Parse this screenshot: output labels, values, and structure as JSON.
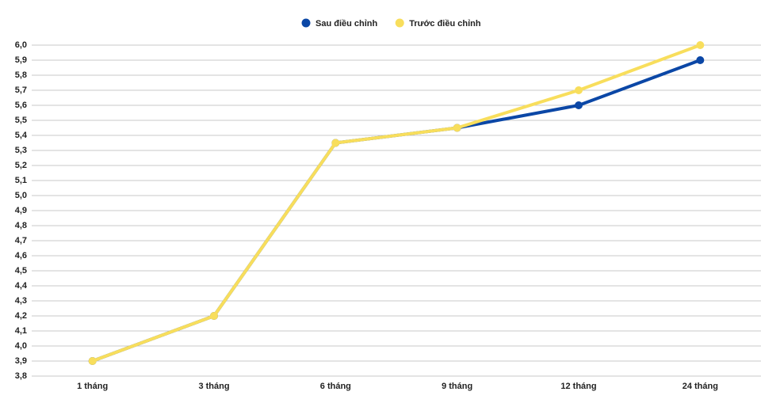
{
  "chart_data": {
    "type": "line",
    "categories": [
      "1 tháng",
      "3 tháng",
      "6 tháng",
      "9 tháng",
      "12 tháng",
      "24 tháng"
    ],
    "series": [
      {
        "name": "Sau điều chỉnh",
        "color": "#0b47a6",
        "values": [
          3.9,
          4.2,
          5.35,
          5.45,
          5.6,
          5.9
        ]
      },
      {
        "name": "Trước điều chỉnh",
        "color": "#f8de5c",
        "values": [
          3.9,
          4.2,
          5.35,
          5.45,
          5.7,
          6.0
        ]
      }
    ],
    "ylim": [
      3.8,
      6.0
    ],
    "yticks": [
      {
        "value": 3.8,
        "label": "3,8"
      },
      {
        "value": 3.9,
        "label": "3,9"
      },
      {
        "value": 4.0,
        "label": "4,0"
      },
      {
        "value": 4.1,
        "label": "4,1"
      },
      {
        "value": 4.2,
        "label": "4,2"
      },
      {
        "value": 4.3,
        "label": "4,3"
      },
      {
        "value": 4.4,
        "label": "4,4"
      },
      {
        "value": 4.5,
        "label": "4,5"
      },
      {
        "value": 4.6,
        "label": "4,6"
      },
      {
        "value": 4.7,
        "label": "4,7"
      },
      {
        "value": 4.8,
        "label": "4,8"
      },
      {
        "value": 4.9,
        "label": "4,9"
      },
      {
        "value": 5.0,
        "label": "5,0"
      },
      {
        "value": 5.1,
        "label": "5,1"
      },
      {
        "value": 5.2,
        "label": "5,2"
      },
      {
        "value": 5.3,
        "label": "5,3"
      },
      {
        "value": 5.4,
        "label": "5,4"
      },
      {
        "value": 5.5,
        "label": "5,5"
      },
      {
        "value": 5.6,
        "label": "5,6"
      },
      {
        "value": 5.7,
        "label": "5,7"
      },
      {
        "value": 5.8,
        "label": "5,8"
      },
      {
        "value": 5.9,
        "label": "5,9"
      },
      {
        "value": 6.0,
        "label": "6,0"
      }
    ],
    "grid": true,
    "legend": "top"
  }
}
